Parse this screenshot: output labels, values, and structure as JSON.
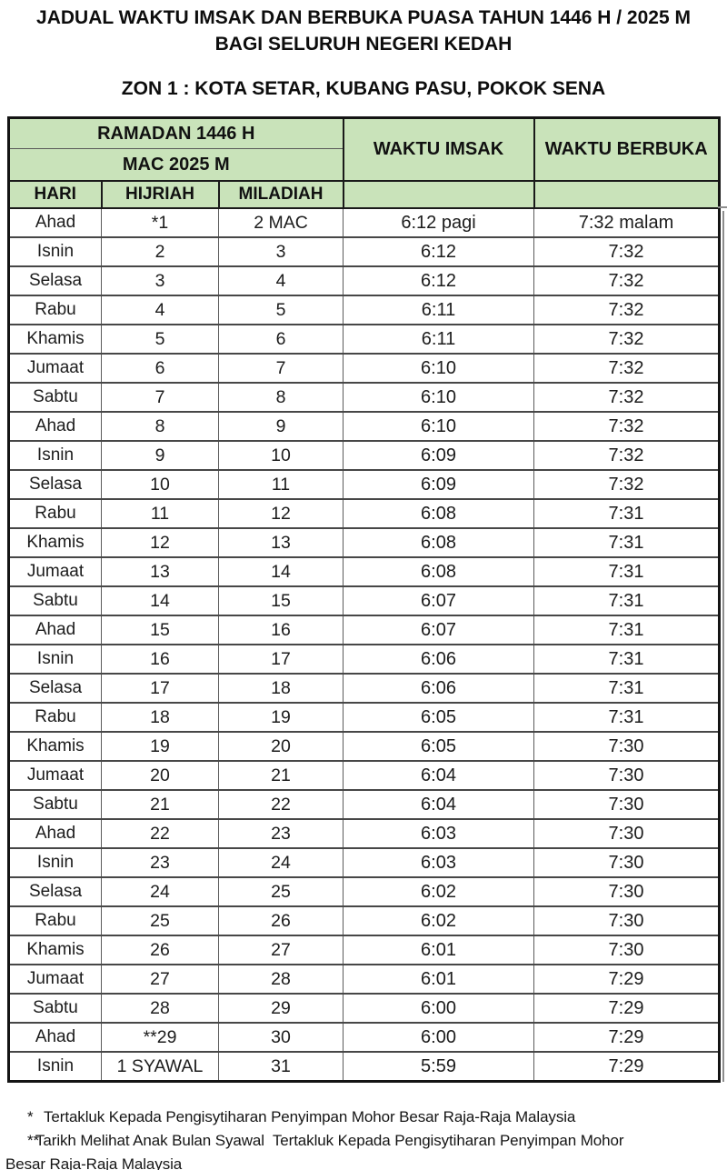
{
  "page": {
    "title_line1": "JADUAL WAKTU IMSAK DAN BERBUKA PUASA TAHUN 1446 H / 2025 M",
    "title_line2": "BAGI SELURUH NEGERI KEDAH",
    "zone_title": "ZON 1 : KOTA SETAR, KUBANG PASU, POKOK SENA"
  },
  "colors": {
    "header_green": "#c9e3ba"
  },
  "table": {
    "header": {
      "month_hijri": "RAMADAN 1446 H",
      "month_gregorian": "MAC 2025 M",
      "col_day": "HARI",
      "col_hijriah": "HIJRIAH",
      "col_miladiah": "MILADIAH",
      "col_imsak": "WAKTU IMSAK",
      "col_berbuka": "WAKTU BERBUKA"
    },
    "rows": [
      {
        "hari": "Ahad",
        "hijriah": "*1",
        "miladiah": "2 MAC",
        "imsak": "6:12 pagi",
        "berbuka": "7:32 malam"
      },
      {
        "hari": "Isnin",
        "hijriah": "2",
        "miladiah": "3",
        "imsak": "6:12",
        "berbuka": "7:32"
      },
      {
        "hari": "Selasa",
        "hijriah": "3",
        "miladiah": "4",
        "imsak": "6:12",
        "berbuka": "7:32"
      },
      {
        "hari": "Rabu",
        "hijriah": "4",
        "miladiah": "5",
        "imsak": "6:11",
        "berbuka": "7:32"
      },
      {
        "hari": "Khamis",
        "hijriah": "5",
        "miladiah": "6",
        "imsak": "6:11",
        "berbuka": "7:32"
      },
      {
        "hari": "Jumaat",
        "hijriah": "6",
        "miladiah": "7",
        "imsak": "6:10",
        "berbuka": "7:32"
      },
      {
        "hari": "Sabtu",
        "hijriah": "7",
        "miladiah": "8",
        "imsak": "6:10",
        "berbuka": "7:32"
      },
      {
        "hari": "Ahad",
        "hijriah": "8",
        "miladiah": "9",
        "imsak": "6:10",
        "berbuka": "7:32"
      },
      {
        "hari": "Isnin",
        "hijriah": "9",
        "miladiah": "10",
        "imsak": "6:09",
        "berbuka": "7:32"
      },
      {
        "hari": "Selasa",
        "hijriah": "10",
        "miladiah": "11",
        "imsak": "6:09",
        "berbuka": "7:32"
      },
      {
        "hari": "Rabu",
        "hijriah": "11",
        "miladiah": "12",
        "imsak": "6:08",
        "berbuka": "7:31"
      },
      {
        "hari": "Khamis",
        "hijriah": "12",
        "miladiah": "13",
        "imsak": "6:08",
        "berbuka": "7:31"
      },
      {
        "hari": "Jumaat",
        "hijriah": "13",
        "miladiah": "14",
        "imsak": "6:08",
        "berbuka": "7:31"
      },
      {
        "hari": "Sabtu",
        "hijriah": "14",
        "miladiah": "15",
        "imsak": "6:07",
        "berbuka": "7:31"
      },
      {
        "hari": "Ahad",
        "hijriah": "15",
        "miladiah": "16",
        "imsak": "6:07",
        "berbuka": "7:31"
      },
      {
        "hari": "Isnin",
        "hijriah": "16",
        "miladiah": "17",
        "imsak": "6:06",
        "berbuka": "7:31"
      },
      {
        "hari": "Selasa",
        "hijriah": "17",
        "miladiah": "18",
        "imsak": "6:06",
        "berbuka": "7:31"
      },
      {
        "hari": "Rabu",
        "hijriah": "18",
        "miladiah": "19",
        "imsak": "6:05",
        "berbuka": "7:31"
      },
      {
        "hari": "Khamis",
        "hijriah": "19",
        "miladiah": "20",
        "imsak": "6:05",
        "berbuka": "7:30"
      },
      {
        "hari": "Jumaat",
        "hijriah": "20",
        "miladiah": "21",
        "imsak": "6:04",
        "berbuka": "7:30"
      },
      {
        "hari": "Sabtu",
        "hijriah": "21",
        "miladiah": "22",
        "imsak": "6:04",
        "berbuka": "7:30"
      },
      {
        "hari": "Ahad",
        "hijriah": "22",
        "miladiah": "23",
        "imsak": "6:03",
        "berbuka": "7:30"
      },
      {
        "hari": "Isnin",
        "hijriah": "23",
        "miladiah": "24",
        "imsak": "6:03",
        "berbuka": "7:30"
      },
      {
        "hari": "Selasa",
        "hijriah": "24",
        "miladiah": "25",
        "imsak": "6:02",
        "berbuka": "7:30"
      },
      {
        "hari": "Rabu",
        "hijriah": "25",
        "miladiah": "26",
        "imsak": "6:02",
        "berbuka": "7:30"
      },
      {
        "hari": "Khamis",
        "hijriah": "26",
        "miladiah": "27",
        "imsak": "6:01",
        "berbuka": "7:30"
      },
      {
        "hari": "Jumaat",
        "hijriah": "27",
        "miladiah": "28",
        "imsak": "6:01",
        "berbuka": "7:29"
      },
      {
        "hari": "Sabtu",
        "hijriah": "28",
        "miladiah": "29",
        "imsak": "6:00",
        "berbuka": "7:29"
      },
      {
        "hari": "Ahad",
        "hijriah": "**29",
        "miladiah": "30",
        "imsak": "6:00",
        "berbuka": "7:29"
      },
      {
        "hari": "Isnin",
        "hijriah": "1 SYAWAL",
        "miladiah": "31",
        "imsak": "5:59",
        "berbuka": "7:29"
      }
    ]
  },
  "footnotes": [
    {
      "marker": "*",
      "text": "Tertakluk Kepada Pengisytiharan Penyimpan Mohor Besar Raja-Raja Malaysia"
    },
    {
      "marker": "**",
      "text": "Tarikh Melihat Anak Bulan Syawal  Tertakluk Kepada Pengisytiharan Penyimpan Mohor Besar Raja-Raja Malaysia"
    }
  ]
}
